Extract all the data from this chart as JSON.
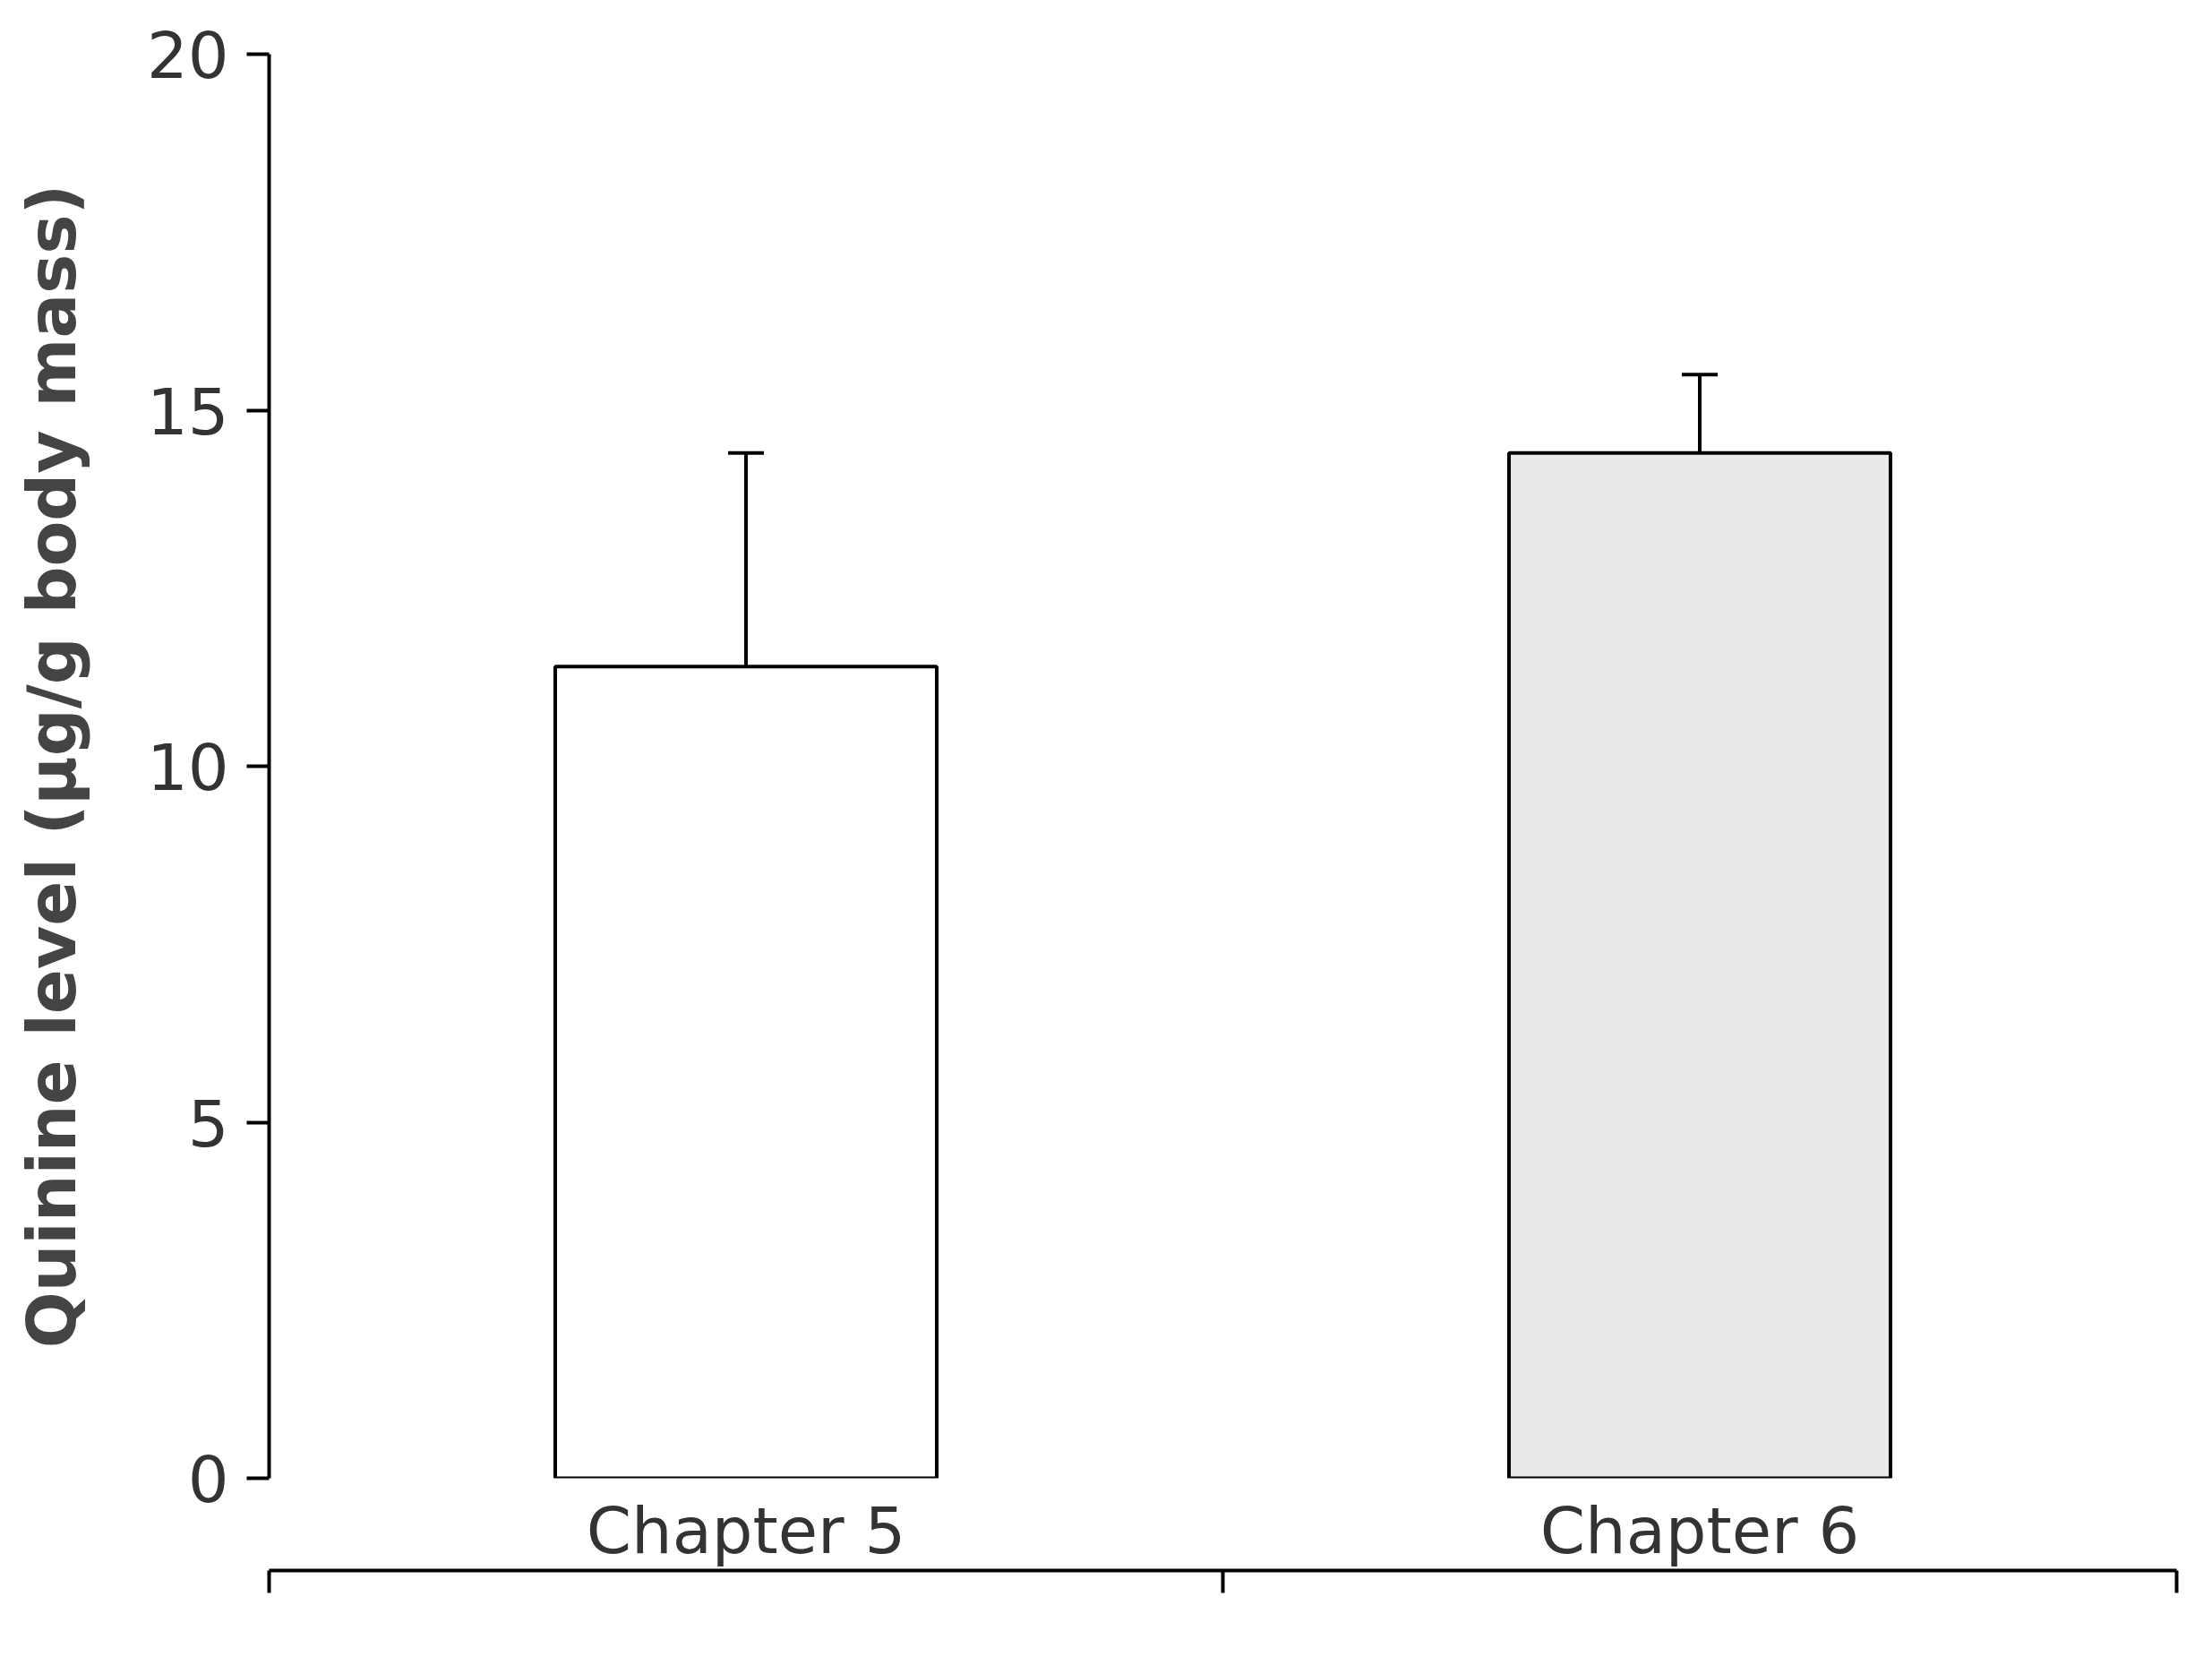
{
  "chart_data": {
    "type": "bar",
    "ylabel": "Quinine level (μg/g body mass)",
    "categories": [
      "Chapter 5",
      "Chapter 6"
    ],
    "values": [
      11.4,
      14.4
    ],
    "colors": [
      "#ffffff",
      "#e8e8e8"
    ],
    "errors": [
      [
        11.4,
        14.4
      ],
      [
        14.4,
        15.5
      ]
    ],
    "ylim": [
      0,
      20
    ],
    "yticks": [
      0,
      5,
      10,
      15,
      20
    ],
    "grid": false
  }
}
